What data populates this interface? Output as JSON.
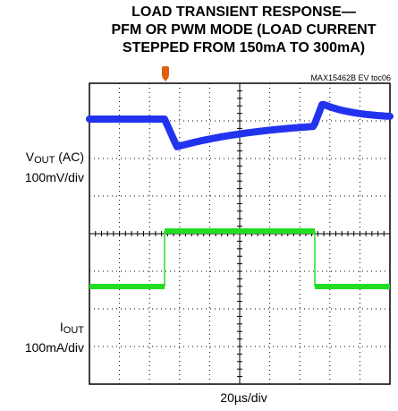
{
  "chart_data": {
    "type": "line",
    "title_lines": [
      "LOAD TRANSIENT RESPONSE—",
      "PFM OR PWM MODE (LOAD CURRENT",
      "STEPPED FROM 150mA TO 300mA)"
    ],
    "figure_tag": "MAX15462B EV toc06",
    "channels": [
      {
        "label_main": "V",
        "label_sub": "OUT",
        "label_suffix": " (AC)",
        "scale": "100mV/div",
        "color": "#2233ee"
      },
      {
        "label_main": "I",
        "label_sub": "OUT",
        "label_suffix": "",
        "scale": "100mA/div",
        "color": "#22dd22"
      }
    ],
    "x_scale": "20µs/div",
    "grid": {
      "divisions_x": 10,
      "divisions_y": 8,
      "style": "dotted"
    },
    "trigger_marker_color": "#e06010"
  }
}
